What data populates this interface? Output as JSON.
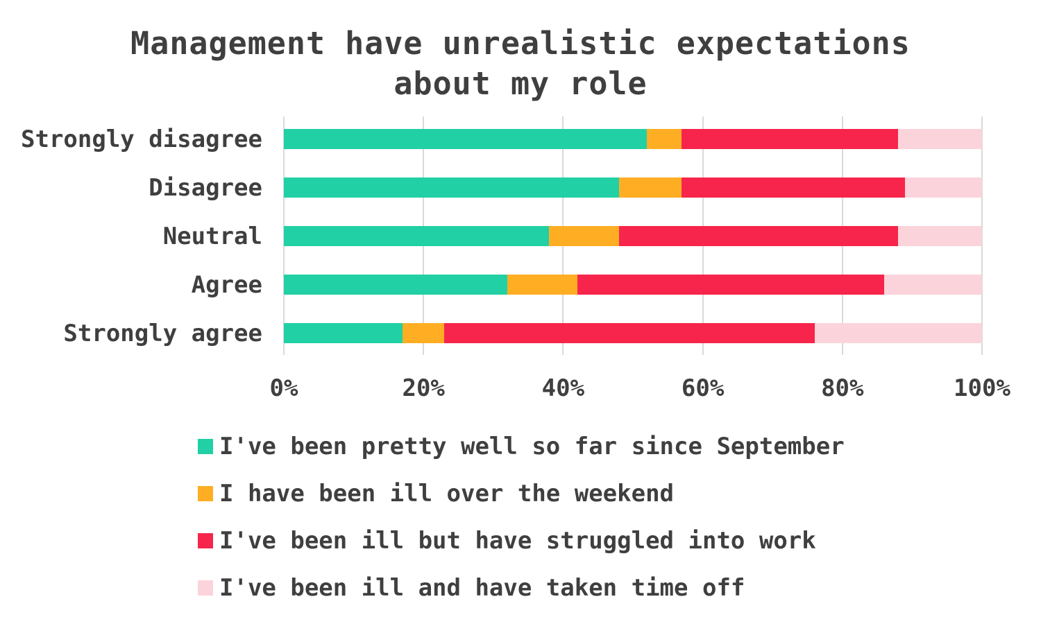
{
  "title": {
    "line1": "Management have unrealistic expectations",
    "line2": "about my role"
  },
  "style": {
    "background": "#FFFFFF",
    "text_color": "#3F3F3F",
    "gridline_color": "#D9D9D9"
  },
  "chart_data": {
    "type": "bar",
    "variant": "stacked-horizontal-100-percent",
    "title": "Management have unrealistic expectations about my role",
    "categories": [
      "Strongly disagree",
      "Disagree",
      "Neutral",
      "Agree",
      "Strongly agree"
    ],
    "series": [
      {
        "name": "I've been pretty well so far since September",
        "color": "#21D0A5",
        "values": [
          52,
          48,
          38,
          32,
          17
        ]
      },
      {
        "name": "I have been ill over the weekend",
        "color": "#FFAE24",
        "values": [
          5,
          9,
          10,
          10,
          6
        ]
      },
      {
        "name": "I've been ill but have struggled into work",
        "color": "#F7254B",
        "values": [
          31,
          32,
          40,
          44,
          53
        ]
      },
      {
        "name": "I've been ill and have taken time off",
        "color": "#FBD4DB",
        "values": [
          12,
          11,
          12,
          14,
          24
        ]
      }
    ],
    "unit": "%",
    "xlim": [
      0,
      100
    ],
    "x_tick_labels": [
      "0%",
      "20%",
      "40%",
      "60%",
      "80%",
      "100%"
    ],
    "x_tick_values": [
      0,
      20,
      40,
      60,
      80,
      100
    ],
    "xlabel": "",
    "ylabel": "",
    "grid": true,
    "legend_position": "bottom-left"
  }
}
